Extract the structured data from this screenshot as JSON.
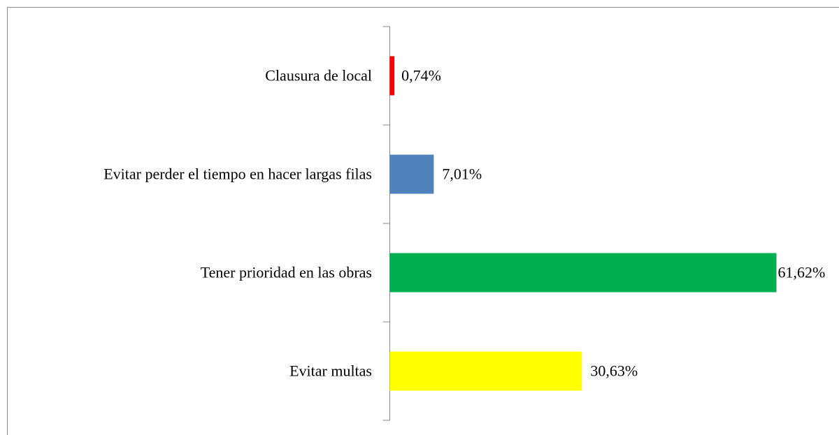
{
  "chart_data": {
    "type": "bar",
    "categories": [
      "Clausura de local",
      "Evitar perder el tiempo en hacer largas filas",
      "Tener prioridad en las obras",
      "Evitar multas"
    ],
    "values": [
      0.74,
      7.01,
      61.62,
      30.63
    ],
    "value_labels": [
      "0,74%",
      "7,01%",
      "61,62%",
      "30,63%"
    ],
    "colors": [
      "#ff0000",
      "#4f81bd",
      "#00b050",
      "#ffff00"
    ]
  }
}
